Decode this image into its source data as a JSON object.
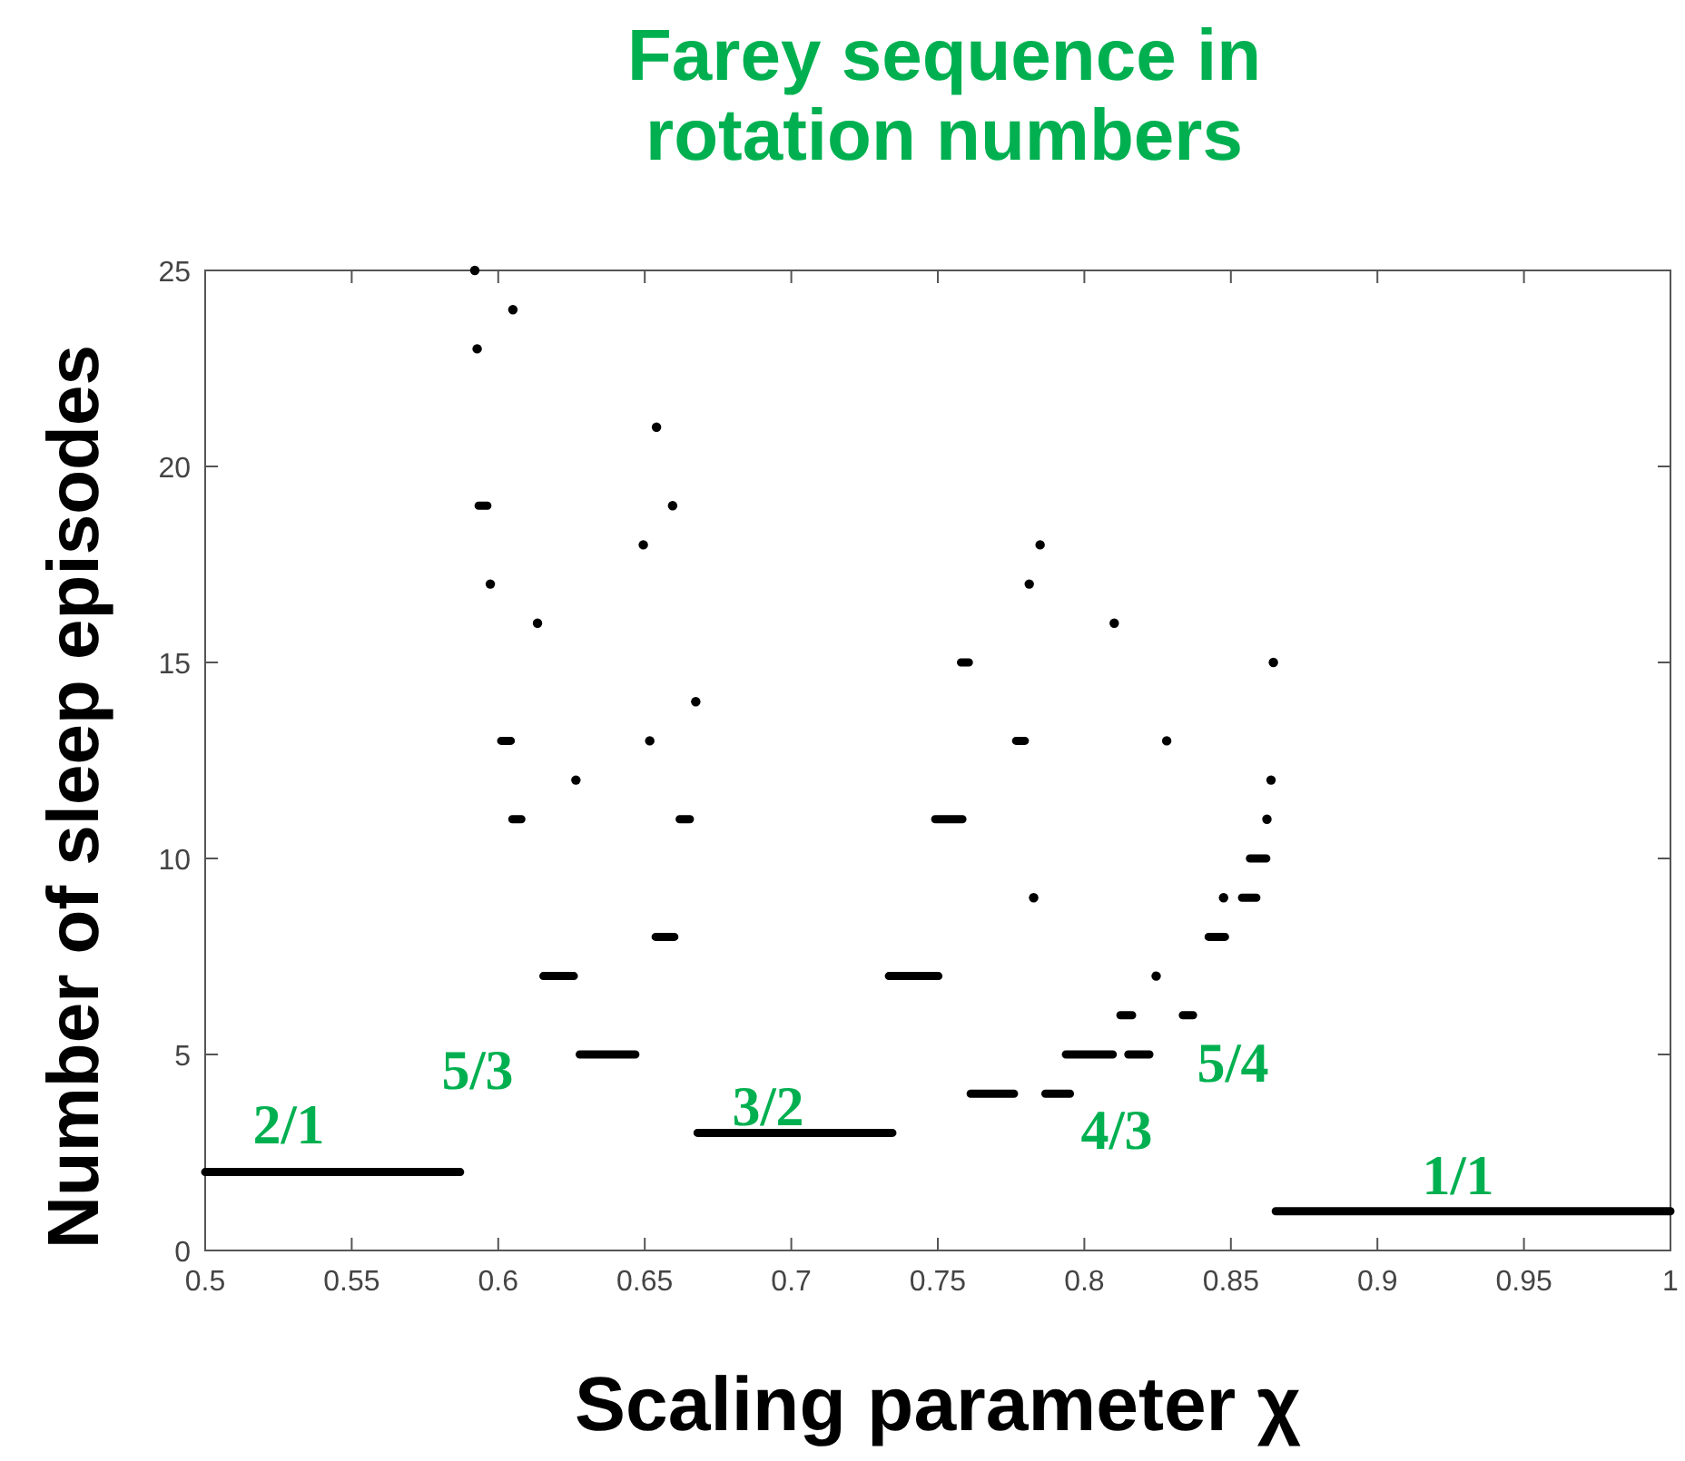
{
  "chart_data": {
    "type": "scatter",
    "title": "Farey sequence in rotation numbers",
    "xlabel": "Scaling parameter χ",
    "ylabel": "Number of sleep episodes",
    "xlim": [
      0.5,
      1
    ],
    "xticks": [
      0.5,
      0.55,
      0.6,
      0.65,
      0.7,
      0.75,
      0.8,
      0.85,
      0.9,
      0.95,
      1
    ],
    "ylim": [
      0,
      25
    ],
    "yticks": [
      0,
      5,
      10,
      15,
      20,
      25
    ],
    "series": [
      {
        "type": "line",
        "color": "#000000",
        "line_style": "solid",
        "x": [
          0.5,
          0.587,
          null,
          0.5933,
          0.5963,
          null,
          0.601,
          0.6043,
          null,
          0.6048,
          0.6079,
          null,
          0.6154,
          0.6258,
          null,
          0.6278,
          0.6468,
          null,
          0.6537,
          0.6601,
          null,
          0.6619,
          0.6654,
          null,
          0.668,
          0.7345,
          null,
          0.7333,
          0.7502,
          null,
          0.7491,
          0.7584,
          null,
          0.7579,
          0.7606,
          null,
          0.7612,
          0.776,
          null,
          0.7767,
          0.7797,
          null,
          0.7867,
          0.7951,
          null,
          0.7937,
          0.8097,
          null,
          0.8123,
          0.8163,
          null,
          0.815,
          0.8222,
          null,
          0.8336,
          0.8371,
          null,
          0.8424,
          0.848,
          null,
          0.8538,
          0.8587,
          null,
          0.8565,
          0.8621,
          null,
          0.8653,
          1
        ],
        "values": [
          2,
          2,
          null,
          19,
          19,
          null,
          13,
          13,
          null,
          11,
          11,
          null,
          7,
          7,
          null,
          5,
          5,
          null,
          8,
          8,
          null,
          11,
          11,
          null,
          3,
          3,
          null,
          7,
          7,
          null,
          11,
          11,
          null,
          15,
          15,
          null,
          4,
          4,
          null,
          13,
          13,
          null,
          4,
          4,
          null,
          5,
          5,
          null,
          6,
          6,
          null,
          5,
          5,
          null,
          6,
          6,
          null,
          8,
          8,
          null,
          9,
          9,
          null,
          10,
          10,
          null,
          1,
          1
        ]
      },
      {
        "color": "#000000",
        "marker": "circle",
        "x": [
          0.592,
          0.5928,
          0.605,
          0.654,
          0.6595,
          0.6495,
          0.5973,
          0.6134,
          0.6674,
          0.6517,
          0.6265,
          0.7849,
          0.7812,
          0.8102,
          0.8281,
          0.7827,
          0.8475,
          0.8245,
          0.8637,
          0.8623,
          0.8645
        ],
        "values": [
          25,
          23,
          24,
          21,
          19,
          18,
          17,
          16,
          14,
          13,
          12,
          18,
          17,
          16,
          13,
          9,
          9,
          7,
          12,
          11,
          15
        ]
      }
    ],
    "annotations": [
      "2/1",
      "5/3",
      "3/2",
      "4/3",
      "5/4",
      "1/1"
    ]
  }
}
